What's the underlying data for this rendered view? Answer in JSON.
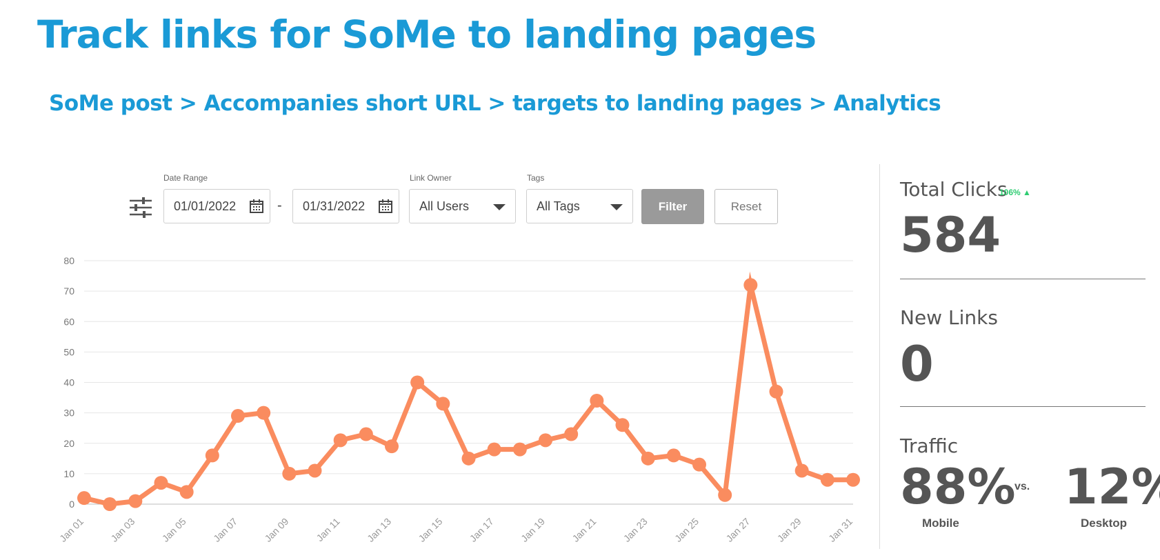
{
  "header": {
    "title": "Track links for SoMe to landing pages",
    "subtitle": "SoMe post > Accompanies short URL > targets to landing pages > Analytics"
  },
  "filters": {
    "date_range_label": "Date Range",
    "start_date": "01/01/2022",
    "separator": "-",
    "end_date": "01/31/2022",
    "link_owner_label": "Link Owner",
    "link_owner_value": "All Users",
    "tags_label": "Tags",
    "tags_value": "All Tags",
    "filter_button": "Filter",
    "reset_button": "Reset",
    "icons": [
      "sliders-icon",
      "calendar-icon",
      "chevron-down-icon"
    ]
  },
  "stats": {
    "total_clicks_label": "Total Clicks",
    "total_clicks_change": "106% ▲",
    "total_clicks_value": "584",
    "new_links_label": "New Links",
    "new_links_value": "0",
    "traffic_label": "Traffic",
    "mobile_percent": "88%",
    "vs_label": "vs.",
    "desktop_percent": "12%",
    "mobile_label": "Mobile",
    "desktop_label": "Desktop"
  },
  "colors": {
    "title": "#1a9ad6",
    "line": "#fa8c5f",
    "positive_change": "#2ecc71",
    "filter_button": "#9a9a9a"
  },
  "chart_data": {
    "type": "line",
    "title": "",
    "xlabel": "",
    "ylabel": "",
    "x": [
      "Jan 01",
      "Jan 02",
      "Jan 03",
      "Jan 04",
      "Jan 05",
      "Jan 06",
      "Jan 07",
      "Jan 08",
      "Jan 09",
      "Jan 10",
      "Jan 11",
      "Jan 12",
      "Jan 13",
      "Jan 14",
      "Jan 15",
      "Jan 16",
      "Jan 17",
      "Jan 18",
      "Jan 19",
      "Jan 20",
      "Jan 21",
      "Jan 22",
      "Jan 23",
      "Jan 24",
      "Jan 25",
      "Jan 26",
      "Jan 27",
      "Jan 28",
      "Jan 29",
      "Jan 30",
      "Jan 31"
    ],
    "x_tick_labels": [
      "Jan 01",
      "Jan 03",
      "Jan 05",
      "Jan 07",
      "Jan 09",
      "Jan 11",
      "Jan 13",
      "Jan 15",
      "Jan 17",
      "Jan 19",
      "Jan 21",
      "Jan 23",
      "Jan 25",
      "Jan 27",
      "Jan 29",
      "Jan 31"
    ],
    "series": [
      {
        "values": [
          2,
          0,
          1,
          7,
          4,
          16,
          29,
          30,
          10,
          11,
          21,
          23,
          19,
          40,
          33,
          15,
          18,
          18,
          21,
          23,
          34,
          26,
          15,
          16,
          13,
          3,
          72,
          37,
          11,
          8,
          8
        ]
      }
    ],
    "ylim": [
      0,
      80
    ],
    "y_ticks": [
      0,
      10,
      20,
      30,
      40,
      50,
      60,
      70,
      80
    ],
    "grid": true,
    "legend": "none"
  }
}
